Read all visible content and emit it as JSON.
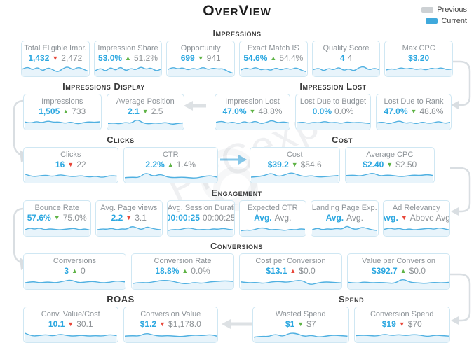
{
  "title": "OverView",
  "legend": {
    "previous": "Previous",
    "current": "Current"
  },
  "watermark": "PPCexpo",
  "colors": {
    "accent_blue": "#2ba7e0",
    "positive_green": "#5fb346",
    "negative_red": "#e8473a",
    "previous_gray": "#8b9094",
    "card_border": "#cfe7f3",
    "connector_gray": "#d9dee2",
    "connector_blue": "#85c7e9"
  },
  "rows": [
    {
      "sections": [
        {
          "title": "Impressions",
          "cards": [
            {
              "title": "Total Eligible Impr.",
              "current": "1,432",
              "trend": "down-red",
              "previous": "2,472",
              "spark": [
                0.55,
                0.8,
                0.45,
                0.75,
                0.35,
                0.7,
                0.5,
                0.25,
                0.6,
                0.8,
                0.45,
                0.75,
                0.55,
                0.35
              ]
            },
            {
              "title": "Impression Share",
              "current": "53.0%",
              "trend": "up-green",
              "previous": "51.2%",
              "spark": [
                0.4,
                0.7,
                0.3,
                0.75,
                0.4,
                0.8,
                0.35,
                0.65,
                0.45,
                0.8,
                0.5,
                0.7,
                0.35,
                0.55
              ]
            },
            {
              "title": "Opportunity",
              "current": "699",
              "trend": "down-green",
              "previous": "941",
              "spark": [
                0.5,
                0.75,
                0.55,
                0.7,
                0.45,
                0.65,
                0.5,
                0.75,
                0.5,
                0.65,
                0.55,
                0.6,
                0.3,
                0.15
              ]
            },
            {
              "title": "Exact Match IS",
              "current": "54.6%",
              "trend": "up-green",
              "previous": "54.4%",
              "spark": [
                0.45,
                0.7,
                0.5,
                0.75,
                0.45,
                0.6,
                0.4,
                0.7,
                0.45,
                0.65,
                0.5,
                0.7,
                0.45,
                0.3
              ]
            },
            {
              "title": "Quality Score",
              "current": "4",
              "trend": "none",
              "previous": "4",
              "spark": [
                0.5,
                0.7,
                0.35,
                0.65,
                0.45,
                0.75,
                0.4,
                0.6,
                0.35,
                0.7,
                0.8,
                0.45,
                0.65,
                0.5
              ]
            },
            {
              "title": "Max CPC",
              "current": "$3.20",
              "trend": "none",
              "previous": "",
              "spark": [
                0.45,
                0.6,
                0.5,
                0.7,
                0.55,
                0.65,
                0.5,
                0.6,
                0.45,
                0.65,
                0.55,
                0.7,
                0.5,
                0.55
              ]
            }
          ]
        }
      ]
    },
    {
      "sections": [
        {
          "title": "Impressions Display",
          "cards": [
            {
              "title": "Impressions",
              "current": "1,505",
              "trend": "up-green",
              "previous": "733",
              "spark": [
                0.6,
                0.45,
                0.65,
                0.5,
                0.7,
                0.55,
                0.6,
                0.45,
                0.6,
                0.4,
                0.5,
                0.6,
                0.55,
                0.6
              ]
            },
            {
              "title": "Average Position",
              "current": "2.1",
              "trend": "down-green",
              "previous": "2.5",
              "spark": [
                0.45,
                0.5,
                0.4,
                0.55,
                0.45,
                0.85,
                0.5,
                0.4,
                0.5,
                0.45,
                0.55,
                0.35,
                0.45,
                0.5
              ]
            }
          ]
        },
        {
          "title": "Impression Lost",
          "cards": [
            {
              "title": "Impression Lost",
              "current": "47.0%",
              "trend": "down-green",
              "previous": "48.8%",
              "spark": [
                0.55,
                0.7,
                0.45,
                0.6,
                0.4,
                0.65,
                0.45,
                0.7,
                0.4,
                0.55,
                0.75,
                0.5,
                0.6,
                0.5
              ]
            },
            {
              "title": "Lost Due to Budget",
              "current": "0.0%",
              "trend": "none",
              "previous": "0.0%",
              "spark": [
                0.5,
                0.6,
                0.45,
                0.55,
                0.5,
                0.65,
                0.5,
                0.55,
                0.45,
                0.6,
                0.5,
                0.55,
                0.5,
                0.45
              ]
            },
            {
              "title": "Lost Due to Rank",
              "current": "47.0%",
              "trend": "down-green",
              "previous": "48.8%",
              "spark": [
                0.5,
                0.6,
                0.4,
                0.55,
                0.7,
                0.45,
                0.55,
                0.4,
                0.6,
                0.45,
                0.5,
                0.65,
                0.45,
                0.55
              ]
            }
          ]
        }
      ]
    },
    {
      "sections": [
        {
          "title": "Clicks",
          "cards": [
            {
              "title": "Clicks",
              "current": "16",
              "trend": "down-red",
              "previous": "22",
              "spark": [
                0.7,
                0.45,
                0.5,
                0.6,
                0.45,
                0.65,
                0.5,
                0.45,
                0.55,
                0.4,
                0.5,
                0.35,
                0.55,
                0.5
              ]
            },
            {
              "title": "CTR",
              "current": "2.2%",
              "trend": "up-green",
              "previous": "1.4%",
              "spark": [
                0.35,
                0.4,
                0.35,
                0.85,
                0.45,
                0.7,
                0.4,
                0.35,
                0.4,
                0.35,
                0.3,
                0.45,
                0.55,
                0.4
              ]
            }
          ]
        },
        {
          "title": "Cost",
          "cards": [
            {
              "title": "Cost",
              "current": "$39.2",
              "trend": "down-green",
              "previous": "$54.6",
              "spark": [
                0.4,
                0.45,
                0.55,
                0.8,
                0.45,
                0.6,
                0.85,
                0.6,
                0.45,
                0.55,
                0.4,
                0.45,
                0.5,
                0.55
              ]
            },
            {
              "title": "Average CPC",
              "current": "$2.40",
              "trend": "down-green",
              "previous": "$2.50",
              "spark": [
                0.55,
                0.6,
                0.5,
                0.65,
                0.8,
                0.5,
                0.6,
                0.55,
                0.45,
                0.5,
                0.6,
                0.55,
                0.65,
                0.55
              ]
            }
          ]
        }
      ]
    },
    {
      "sections": [
        {
          "title": "Engagement",
          "cards": [
            {
              "title": "Bounce Rate",
              "current": "57.6%",
              "trend": "down-green",
              "previous": "75.0%",
              "spark": [
                0.45,
                0.65,
                0.5,
                0.65,
                0.45,
                0.55,
                0.5,
                0.45,
                0.5,
                0.55,
                0.6,
                0.45,
                0.55,
                0.45
              ]
            },
            {
              "title": "Avg. Page views",
              "current": "2.2",
              "trend": "down-red",
              "previous": "3.1",
              "spark": [
                0.45,
                0.55,
                0.5,
                0.6,
                0.45,
                0.55,
                0.5,
                0.8,
                0.65,
                0.45,
                0.75,
                0.6,
                0.5,
                0.45
              ]
            },
            {
              "title": "Avg. Session Duration",
              "current": "00:00:25",
              "trend": "none",
              "previous": "00:00:25",
              "spark": [
                0.4,
                0.5,
                0.45,
                0.55,
                0.65,
                0.55,
                0.45,
                0.5,
                0.45,
                0.55,
                0.5,
                0.6,
                0.5,
                0.45
              ]
            },
            {
              "title": "Expected CTR",
              "current": "Avg.",
              "trend": "none",
              "previous": "Avg.",
              "spark": [
                0.35,
                0.45,
                0.4,
                0.5,
                0.65,
                0.6,
                0.45,
                0.5,
                0.45,
                0.4,
                0.5,
                0.45,
                0.55,
                0.5
              ]
            },
            {
              "title": "Landing Page Exp.",
              "current": "Avg.",
              "trend": "none",
              "previous": "Avg.",
              "spark": [
                0.45,
                0.65,
                0.45,
                0.55,
                0.5,
                0.6,
                0.5,
                0.85,
                0.55,
                0.5,
                0.7,
                0.6,
                0.45,
                0.4
              ]
            },
            {
              "title": "Ad Relevancy",
              "current": "Avg.",
              "trend": "down-red",
              "previous": "Above Avg.",
              "spark": [
                0.5,
                0.65,
                0.5,
                0.6,
                0.45,
                0.55,
                0.45,
                0.5,
                0.55,
                0.6,
                0.5,
                0.65,
                0.55,
                0.45
              ]
            }
          ]
        }
      ]
    },
    {
      "sections": [
        {
          "title": "Conversions",
          "cards": [
            {
              "title": "Conversions",
              "current": "3",
              "trend": "up-green",
              "previous": "0",
              "spark": [
                0.45,
                0.6,
                0.45,
                0.55,
                0.45,
                0.6,
                0.75,
                0.45,
                0.55,
                0.6,
                0.45,
                0.5,
                0.65,
                0.55
              ]
            },
            {
              "title": "Conversion Rate",
              "current": "18.8%",
              "trend": "up-green",
              "previous": "0.0%",
              "spark": [
                0.4,
                0.5,
                0.45,
                0.6,
                0.7,
                0.65,
                0.45,
                0.35,
                0.5,
                0.4,
                0.55,
                0.6,
                0.65,
                0.6
              ]
            },
            {
              "title": "Cost per Conversion",
              "current": "$13.1",
              "trend": "up-red",
              "previous": "$0.0",
              "spark": [
                0.55,
                0.45,
                0.5,
                0.4,
                0.55,
                0.6,
                0.5,
                0.65,
                0.7,
                0.25,
                0.45,
                0.55,
                0.5,
                0.45
              ]
            },
            {
              "title": "Value per Conversion",
              "current": "$392.7",
              "trend": "up-green",
              "previous": "$0.0",
              "spark": [
                0.5,
                0.4,
                0.55,
                0.45,
                0.5,
                0.45,
                0.4,
                0.85,
                0.5,
                0.45,
                0.4,
                0.5,
                0.45,
                0.5
              ]
            }
          ]
        }
      ]
    },
    {
      "sections": [
        {
          "title": "ROAS",
          "cards": [
            {
              "title": "Conv. Value/Cost",
              "current": "10.1",
              "trend": "down-red",
              "previous": "30.1",
              "spark": [
                0.75,
                0.45,
                0.5,
                0.6,
                0.45,
                0.65,
                0.5,
                0.45,
                0.55,
                0.45,
                0.5,
                0.45,
                0.6,
                0.5
              ]
            },
            {
              "title": "Conversion Value",
              "current": "$1.2",
              "trend": "down-red",
              "previous": "$1,178.0",
              "spark": [
                0.45,
                0.5,
                0.45,
                0.75,
                0.55,
                0.45,
                0.5,
                0.45,
                0.4,
                0.5,
                0.55,
                0.5,
                0.6,
                0.45
              ]
            }
          ]
        },
        {
          "title": "Spend",
          "cards": [
            {
              "title": "Wasted Spend",
              "current": "$1",
              "trend": "down-green",
              "previous": "$7",
              "spark": [
                0.35,
                0.45,
                0.4,
                0.65,
                0.4,
                0.75,
                0.7,
                0.4,
                0.55,
                0.35,
                0.45,
                0.55,
                0.5,
                0.45
              ]
            },
            {
              "title": "Conversion Spend",
              "current": "$19",
              "trend": "down-red",
              "previous": "$70",
              "spark": [
                0.5,
                0.55,
                0.5,
                0.45,
                0.65,
                0.5,
                0.6,
                0.5,
                0.6,
                0.55,
                0.4,
                0.55,
                0.5,
                0.45
              ]
            }
          ]
        }
      ]
    }
  ]
}
